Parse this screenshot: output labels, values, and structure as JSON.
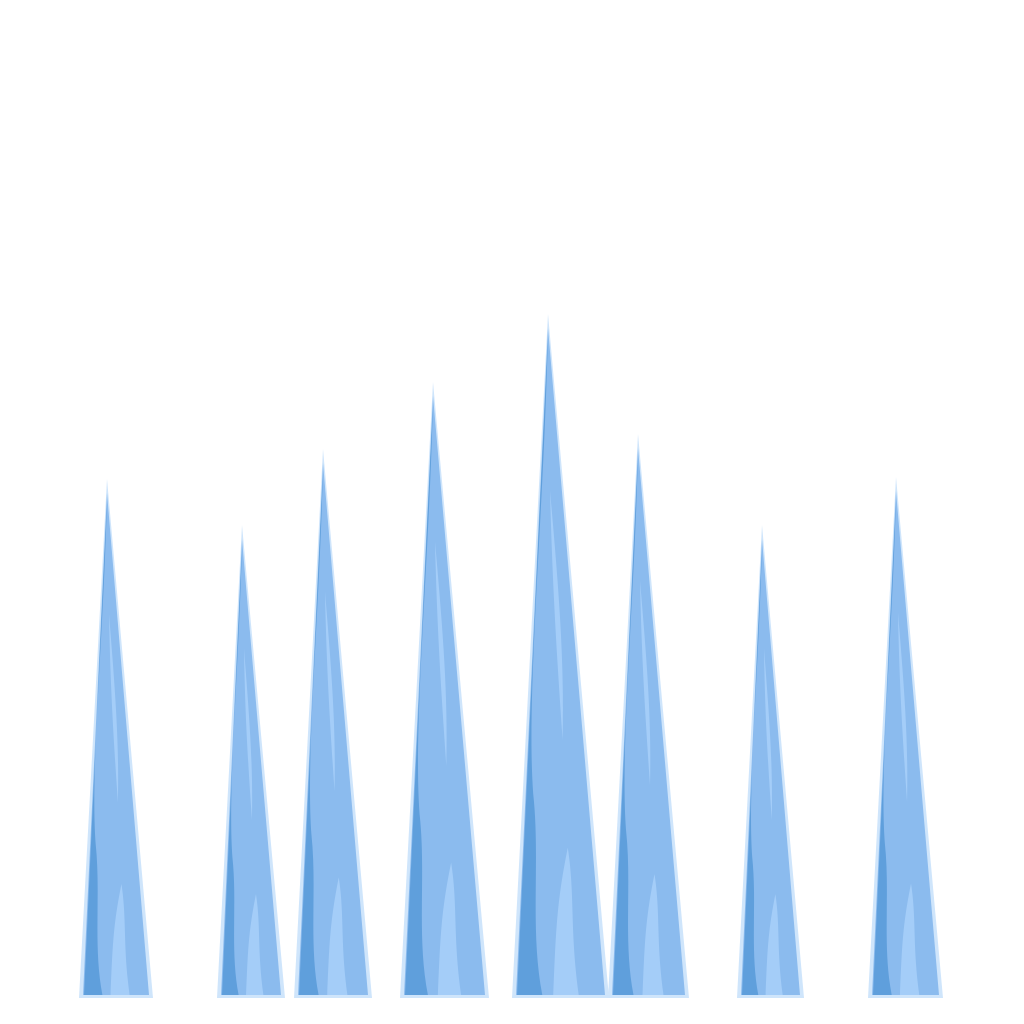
{
  "scene": {
    "background": "#ffffff",
    "subject": "icicle-spikes",
    "spike_count": 8,
    "colors": {
      "outline": "#cfe5fb",
      "base": "#8bbbee",
      "dark": "#5f9fdc",
      "light": "#a4cdf8"
    }
  }
}
